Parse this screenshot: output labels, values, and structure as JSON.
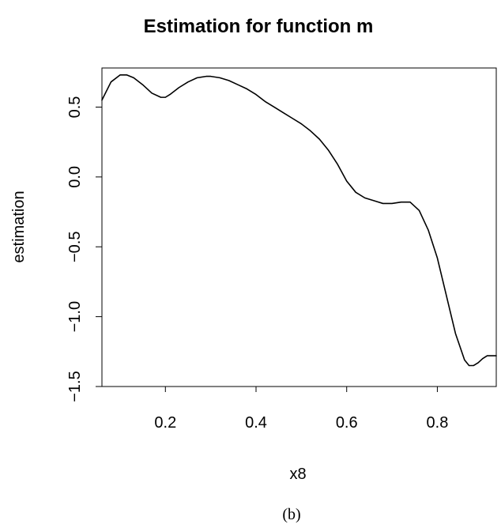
{
  "figure": {
    "caption": "(b)"
  },
  "chart_data": {
    "type": "line",
    "title": "Estimation for function m",
    "xlabel": "x8",
    "ylabel": "estimation",
    "xlim": [
      0.06,
      0.93
    ],
    "ylim": [
      -1.5,
      0.78
    ],
    "grid": false,
    "xticks": [
      {
        "value": 0.2,
        "label": "0.2"
      },
      {
        "value": 0.4,
        "label": "0.4"
      },
      {
        "value": 0.6,
        "label": "0.6"
      },
      {
        "value": 0.8,
        "label": "0.8"
      }
    ],
    "yticks": [
      {
        "value": -1.5,
        "label": "−1.5"
      },
      {
        "value": -1.0,
        "label": "−1.0"
      },
      {
        "value": -0.5,
        "label": "−0.5"
      },
      {
        "value": 0.0,
        "label": "0.0"
      },
      {
        "value": 0.5,
        "label": "0.5"
      }
    ],
    "series": [
      {
        "color": "#000000",
        "x": [
          0.06,
          0.08,
          0.1,
          0.115,
          0.13,
          0.15,
          0.17,
          0.19,
          0.2,
          0.21,
          0.23,
          0.25,
          0.27,
          0.29,
          0.3,
          0.32,
          0.34,
          0.36,
          0.38,
          0.4,
          0.42,
          0.44,
          0.46,
          0.48,
          0.5,
          0.52,
          0.54,
          0.56,
          0.58,
          0.6,
          0.62,
          0.64,
          0.66,
          0.68,
          0.7,
          0.72,
          0.74,
          0.76,
          0.78,
          0.8,
          0.82,
          0.84,
          0.86,
          0.87,
          0.88,
          0.89,
          0.9,
          0.91,
          0.92,
          0.93
        ],
        "y": [
          0.55,
          0.68,
          0.73,
          0.73,
          0.71,
          0.66,
          0.6,
          0.57,
          0.57,
          0.59,
          0.64,
          0.68,
          0.71,
          0.72,
          0.72,
          0.71,
          0.69,
          0.66,
          0.63,
          0.59,
          0.54,
          0.5,
          0.46,
          0.42,
          0.38,
          0.33,
          0.27,
          0.19,
          0.09,
          -0.03,
          -0.11,
          -0.15,
          -0.17,
          -0.19,
          -0.19,
          -0.18,
          -0.18,
          -0.24,
          -0.38,
          -0.58,
          -0.85,
          -1.12,
          -1.31,
          -1.35,
          -1.35,
          -1.33,
          -1.3,
          -1.28,
          -1.28,
          -1.28
        ]
      }
    ]
  }
}
